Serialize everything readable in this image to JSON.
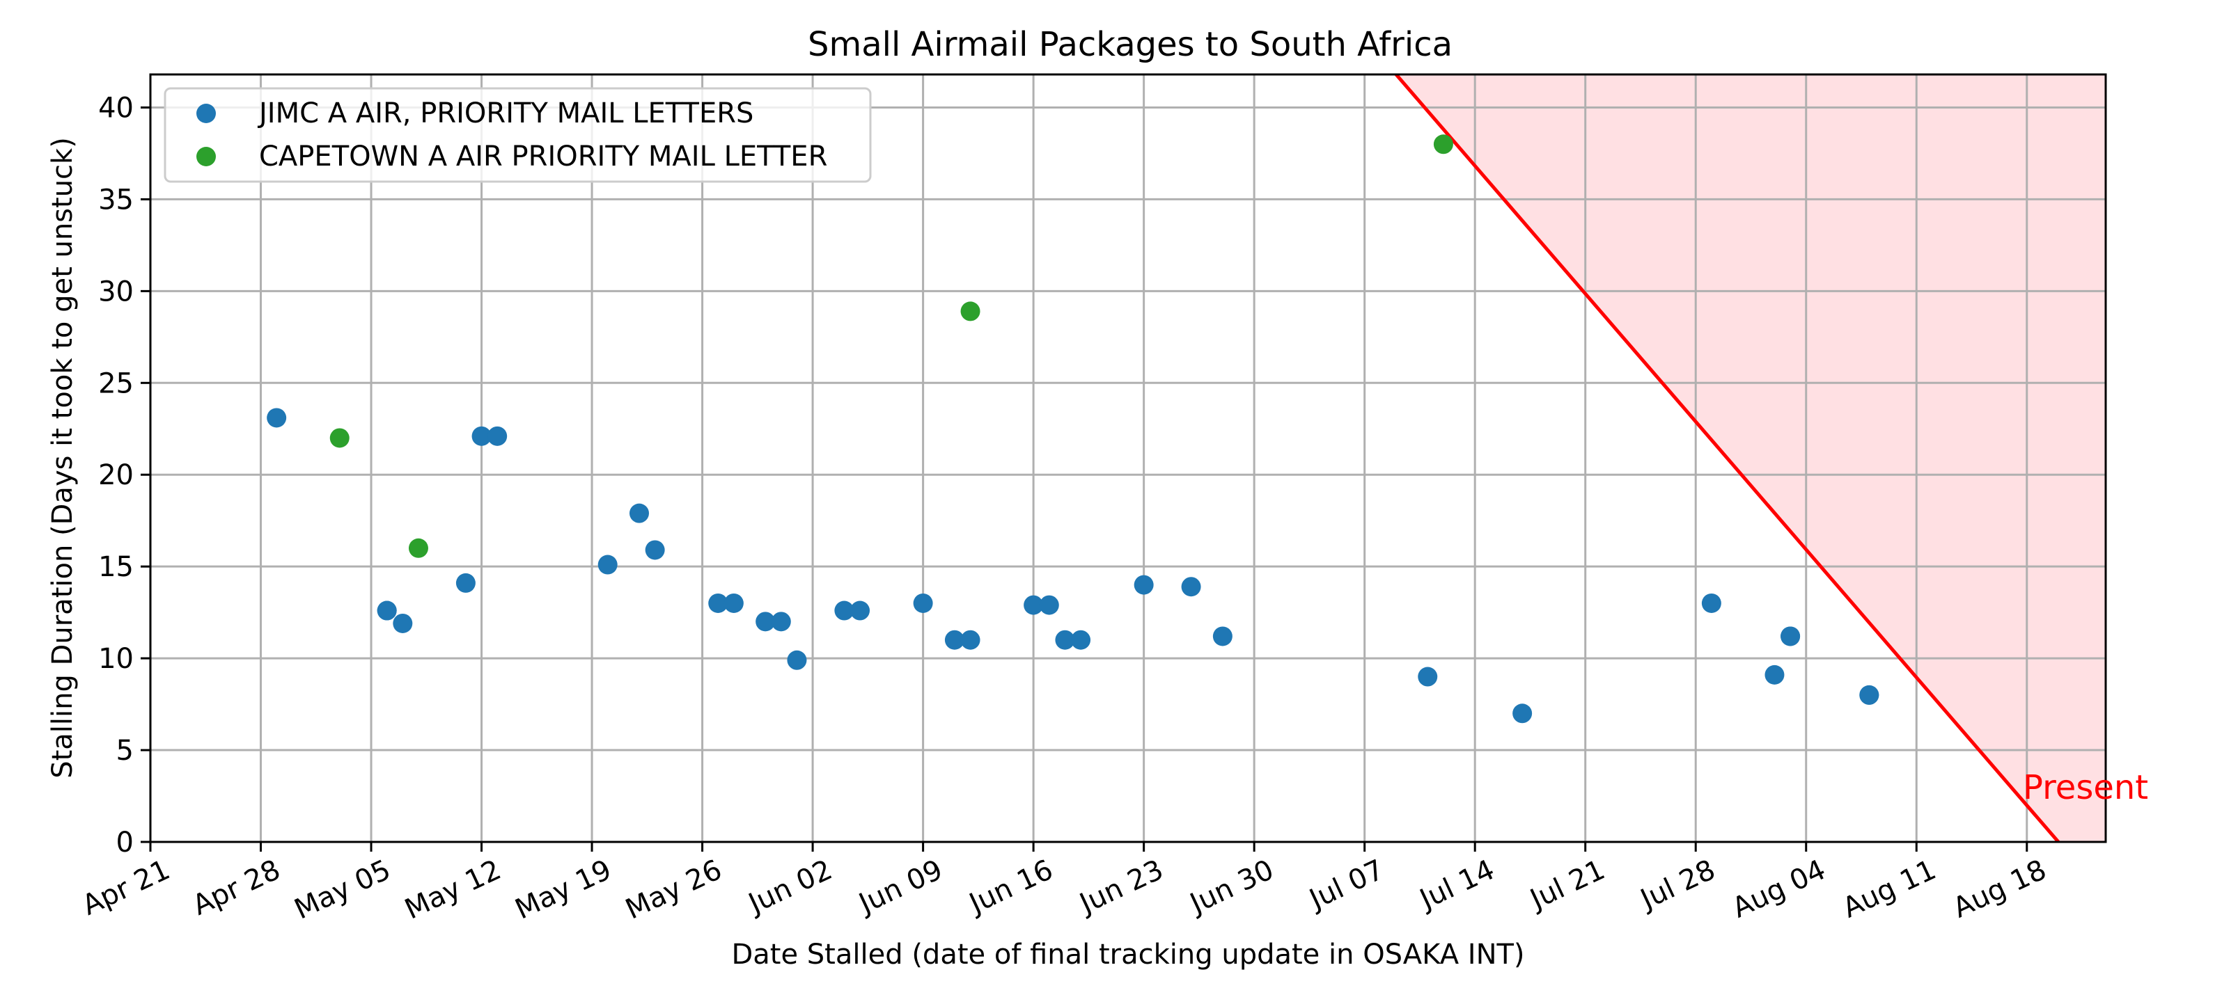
{
  "chart_data": {
    "type": "scatter",
    "title": "Small Airmail Packages to South Africa",
    "xlabel": "Date Stalled (date of final tracking update in OSAKA INT)",
    "ylabel": "Stalling Duration (Days it took to get unstuck)",
    "x_range": [
      "2024-04-21",
      "2024-08-23"
    ],
    "ylim": [
      0,
      41.8
    ],
    "grid": true,
    "legend_position": "top-left",
    "x_ticks": [
      {
        "date": "2024-04-21",
        "label": "Apr 21"
      },
      {
        "date": "2024-04-28",
        "label": "Apr 28"
      },
      {
        "date": "2024-05-05",
        "label": "May 05"
      },
      {
        "date": "2024-05-12",
        "label": "May 12"
      },
      {
        "date": "2024-05-19",
        "label": "May 19"
      },
      {
        "date": "2024-05-26",
        "label": "May 26"
      },
      {
        "date": "2024-06-02",
        "label": "Jun 02"
      },
      {
        "date": "2024-06-09",
        "label": "Jun 09"
      },
      {
        "date": "2024-06-16",
        "label": "Jun 16"
      },
      {
        "date": "2024-06-23",
        "label": "Jun 23"
      },
      {
        "date": "2024-06-30",
        "label": "Jun 30"
      },
      {
        "date": "2024-07-07",
        "label": "Jul 07"
      },
      {
        "date": "2024-07-14",
        "label": "Jul 14"
      },
      {
        "date": "2024-07-21",
        "label": "Jul 21"
      },
      {
        "date": "2024-07-28",
        "label": "Jul 28"
      },
      {
        "date": "2024-08-04",
        "label": "Aug 04"
      },
      {
        "date": "2024-08-11",
        "label": "Aug 11"
      },
      {
        "date": "2024-08-18",
        "label": "Aug 18"
      }
    ],
    "y_ticks": [
      0,
      5,
      10,
      15,
      20,
      25,
      30,
      35,
      40
    ],
    "series": [
      {
        "name": "JIMC A AIR, PRIORITY MAIL LETTERS",
        "color": "#1f77b4",
        "points": [
          {
            "x": "2024-04-29",
            "y": 23.1
          },
          {
            "x": "2024-05-06",
            "y": 12.6
          },
          {
            "x": "2024-05-06",
            "y": 12.6
          },
          {
            "x": "2024-05-07",
            "y": 11.9
          },
          {
            "x": "2024-05-11",
            "y": 14.1
          },
          {
            "x": "2024-05-12",
            "y": 22.1
          },
          {
            "x": "2024-05-13",
            "y": 22.1
          },
          {
            "x": "2024-05-20",
            "y": 15.1
          },
          {
            "x": "2024-05-22",
            "y": 17.9
          },
          {
            "x": "2024-05-23",
            "y": 15.9
          },
          {
            "x": "2024-05-27",
            "y": 13.0
          },
          {
            "x": "2024-05-28",
            "y": 13.0
          },
          {
            "x": "2024-05-30",
            "y": 12.0
          },
          {
            "x": "2024-05-31",
            "y": 12.0
          },
          {
            "x": "2024-06-01",
            "y": 9.9
          },
          {
            "x": "2024-06-04",
            "y": 12.6
          },
          {
            "x": "2024-06-05",
            "y": 12.6
          },
          {
            "x": "2024-06-09",
            "y": 13.0
          },
          {
            "x": "2024-06-11",
            "y": 11.0
          },
          {
            "x": "2024-06-12",
            "y": 11.0
          },
          {
            "x": "2024-06-16",
            "y": 12.9
          },
          {
            "x": "2024-06-17",
            "y": 12.9
          },
          {
            "x": "2024-06-18",
            "y": 11.0
          },
          {
            "x": "2024-06-19",
            "y": 11.0
          },
          {
            "x": "2024-06-23",
            "y": 14.0
          },
          {
            "x": "2024-06-26",
            "y": 13.9
          },
          {
            "x": "2024-06-28",
            "y": 11.2
          },
          {
            "x": "2024-07-11",
            "y": 9.0
          },
          {
            "x": "2024-07-17",
            "y": 7.0
          },
          {
            "x": "2024-07-29",
            "y": 13.0
          },
          {
            "x": "2024-08-02",
            "y": 9.1
          },
          {
            "x": "2024-08-03",
            "y": 11.2
          },
          {
            "x": "2024-08-03",
            "y": 11.2
          },
          {
            "x": "2024-08-08",
            "y": 8.0
          },
          {
            "x": "2024-08-08",
            "y": 8.0
          }
        ]
      },
      {
        "name": "CAPETOWN A AIR PRIORITY MAIL LETTER",
        "color": "#2ca02c",
        "points": [
          {
            "x": "2024-05-03",
            "y": 22.0
          },
          {
            "x": "2024-05-08",
            "y": 16.0
          },
          {
            "x": "2024-06-12",
            "y": 28.9
          },
          {
            "x": "2024-07-12",
            "y": 38.0
          }
        ]
      }
    ],
    "present_line": {
      "label": "Present",
      "color": "#ff0000",
      "fill_color": "#ffe0e3",
      "points": [
        {
          "x": "2024-07-09",
          "y": 41.8
        },
        {
          "x": "2024-08-20",
          "y": 0
        }
      ]
    }
  }
}
